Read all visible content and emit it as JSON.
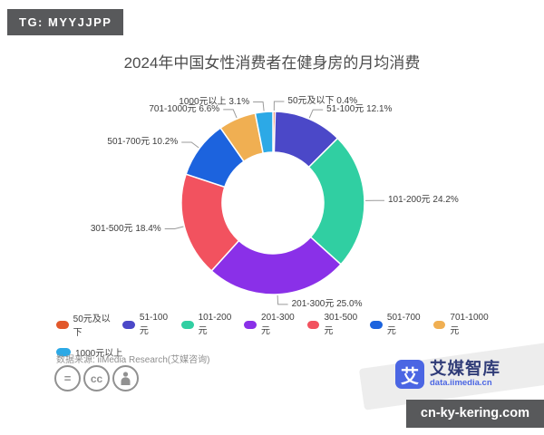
{
  "badges": {
    "top_left": "TG: MYYJJPP",
    "bottom_right": "cn-ky-kering.com",
    "badge_color": "#58595B"
  },
  "chart_data": {
    "type": "pie",
    "subtype": "donut",
    "title": "2024年中国女性消费者在健身房的月均消费",
    "categories": [
      "50元及以下",
      "51-100元",
      "101-200元",
      "201-300元",
      "301-500元",
      "501-700元",
      "701-1000元",
      "1000元以上"
    ],
    "values": [
      0.4,
      12.1,
      24.2,
      25.0,
      18.4,
      10.2,
      6.6,
      3.1
    ],
    "unit": "%",
    "colors": [
      "#E2582B",
      "#4B48C8",
      "#30CFA2",
      "#8A30E8",
      "#F2525F",
      "#1C63DE",
      "#F0AF52",
      "#2CA9E6"
    ],
    "legend_position": "bottom",
    "inner_radius_ratio": 0.55,
    "start_angle_deg": 0,
    "label_format": "{name} {value}%"
  },
  "footer": {
    "source": "数据来源: iiMedia Research(艾媒咨询)",
    "cc_icons": [
      "equals",
      "cc",
      "person"
    ]
  },
  "logo": {
    "icon_char": "艾",
    "brand": "艾媒智库",
    "url": "data.iimedia.cn",
    "brand_color": "#303C78",
    "accent_color": "#4B66E3"
  }
}
